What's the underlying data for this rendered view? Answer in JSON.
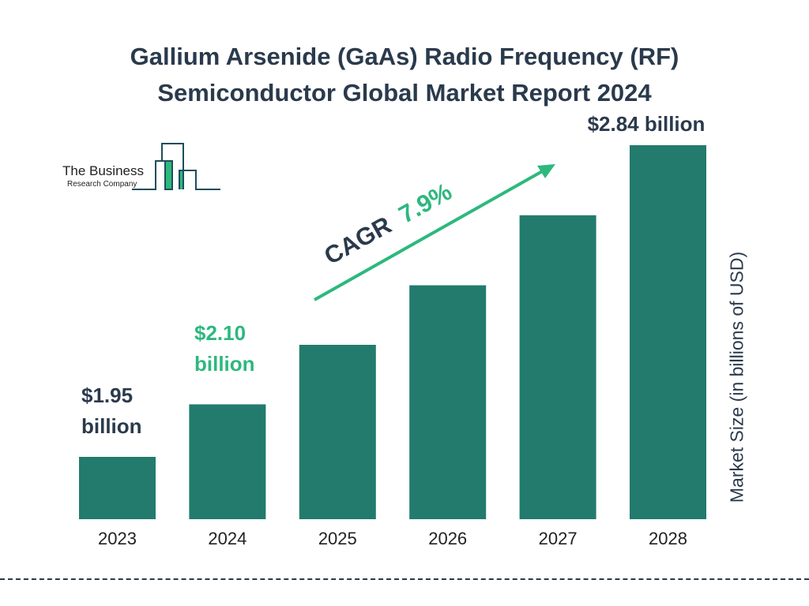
{
  "title_line1": "Gallium Arsenide (GaAs) Radio Frequency (RF)",
  "title_line2": "Semiconductor Global Market Report 2024",
  "logo": {
    "line1": "The Business",
    "line2": "Research Company"
  },
  "colors": {
    "bar": "#227b6d",
    "accent": "#2db87e",
    "text": "#2a3a4c"
  },
  "chart_data": {
    "type": "bar",
    "categories": [
      "2023",
      "2024",
      "2025",
      "2026",
      "2027",
      "2028"
    ],
    "values": [
      1.95,
      2.1,
      2.27,
      2.44,
      2.64,
      2.84
    ],
    "data_labels": [
      {
        "category": "2023",
        "line1": "$1.95",
        "line2": "billion"
      },
      {
        "category": "2024",
        "line1": "$2.10",
        "line2": "billion"
      },
      {
        "category": "2028",
        "line1": "$2.84 billion",
        "line2": ""
      }
    ],
    "ylabel": "Market Size (in billions of USD)",
    "annotation": {
      "cagr_label": "CAGR",
      "cagr_value": "7.9%"
    },
    "grid": false
  }
}
